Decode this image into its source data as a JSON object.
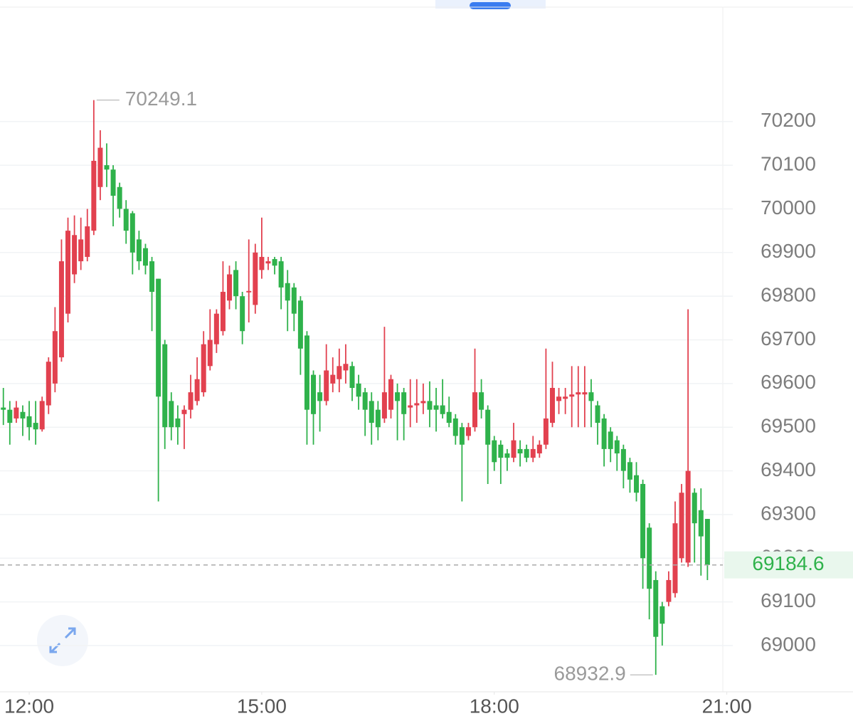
{
  "chart_data": {
    "type": "candlestick",
    "x": [
      700,
      705,
      710,
      715,
      720,
      725,
      730,
      735,
      740,
      745,
      750,
      755,
      760,
      765,
      770,
      775,
      780,
      785,
      790,
      795,
      800,
      805,
      810,
      815,
      820,
      825,
      830,
      835,
      840,
      845,
      850,
      855,
      860,
      865,
      870,
      875,
      880,
      885,
      890,
      895,
      900,
      905,
      910,
      915,
      920,
      925,
      930,
      935,
      940,
      945,
      950,
      955,
      960,
      965,
      970,
      975,
      980,
      985,
      990,
      995,
      1000,
      1005,
      1010,
      1015,
      1020,
      1025,
      1030,
      1035,
      1040,
      1045,
      1050,
      1055,
      1060,
      1065,
      1070,
      1075,
      1080,
      1085,
      1090,
      1095,
      1100,
      1105,
      1110,
      1115,
      1120,
      1125,
      1130,
      1135,
      1140,
      1145,
      1150,
      1155,
      1160,
      1165,
      1170,
      1175,
      1180,
      1185,
      1190,
      1195,
      1200,
      1205,
      1210,
      1215,
      1220,
      1225,
      1230,
      1235,
      1240,
      1245
    ],
    "open": [
      69545,
      69540,
      69520,
      69535,
      69525,
      69510,
      69495,
      69550,
      69600,
      69660,
      69760,
      69850,
      69880,
      69890,
      69950,
      70050,
      70100,
      70090,
      70050,
      70000,
      69990,
      69930,
      69910,
      69880,
      69840,
      69690,
      69560,
      69520,
      69530,
      69540,
      69560,
      69580,
      69640,
      69690,
      69720,
      69790,
      69860,
      69800,
      69810,
      69780,
      69860,
      69875,
      69885,
      69880,
      69830,
      69820,
      69790,
      69710,
      69620,
      69580,
      69560,
      69600,
      69610,
      69630,
      69640,
      69600,
      69580,
      69560,
      69540,
      69520,
      69540,
      69580,
      69580,
      69545,
      69550,
      69555,
      69560,
      69550,
      69550,
      69535,
      69520,
      69500,
      69480,
      69500,
      69580,
      69540,
      69470,
      69460,
      69440,
      69430,
      69450,
      69450,
      69430,
      69440,
      69460,
      69510,
      69560,
      69565,
      69570,
      69575,
      69575,
      69580,
      69550,
      69520,
      69490,
      69470,
      69450,
      69420,
      69390,
      69370,
      69270,
      69150,
      69090,
      69100,
      69120,
      69200,
      69190,
      69350,
      69310,
      69290
    ],
    "high": [
      69590,
      69560,
      69560,
      69550,
      69560,
      69560,
      69570,
      69660,
      69775,
      69930,
      69980,
      69985,
      69980,
      70000,
      70249.1,
      70180,
      70150,
      70100,
      70060,
      70020,
      69995,
      69950,
      69920,
      69890,
      69840,
      69700,
      69580,
      69550,
      69550,
      69620,
      69660,
      69720,
      69770,
      69770,
      69880,
      69870,
      69880,
      69810,
      69930,
      69920,
      69980,
      69890,
      69890,
      69890,
      69860,
      69830,
      69800,
      69720,
      69630,
      69620,
      69690,
      69660,
      69680,
      69690,
      69650,
      69620,
      69590,
      69580,
      69560,
      69730,
      69620,
      69600,
      69590,
      69610,
      69610,
      69600,
      69605,
      69590,
      69610,
      69570,
      69530,
      69510,
      69510,
      69680,
      69610,
      69550,
      69480,
      69470,
      69450,
      69510,
      69470,
      69460,
      69480,
      69470,
      69680,
      69650,
      69590,
      69590,
      69640,
      69640,
      69640,
      69610,
      69560,
      69530,
      69500,
      69480,
      69460,
      69430,
      69420,
      69380,
      69280,
      69170,
      69100,
      69170,
      69330,
      69370,
      69770,
      69360,
      69360,
      69290
    ],
    "low": [
      69505,
      69460,
      69510,
      69480,
      69470,
      69460,
      69490,
      69530,
      69580,
      69650,
      69740,
      69830,
      69860,
      69880,
      69940,
      70020,
      70050,
      69960,
      69980,
      69920,
      69850,
      69860,
      69850,
      69720,
      69330,
      69450,
      69470,
      69460,
      69450,
      69520,
      69550,
      69570,
      69630,
      69670,
      69710,
      69770,
      69770,
      69690,
      69740,
      69760,
      69840,
      69860,
      69850,
      69770,
      69720,
      69720,
      69620,
      69460,
      69460,
      69490,
      69550,
      69580,
      69580,
      69600,
      69560,
      69540,
      69480,
      69460,
      69470,
      69510,
      69520,
      69470,
      69470,
      69500,
      69510,
      69530,
      69500,
      69490,
      69520,
      69500,
      69460,
      69330,
      69470,
      69490,
      69520,
      69370,
      69400,
      69370,
      69400,
      69420,
      69410,
      69420,
      69420,
      69430,
      69450,
      69500,
      69530,
      69530,
      69500,
      69500,
      69500,
      69500,
      69460,
      69410,
      69420,
      69400,
      69360,
      69350,
      69330,
      69130,
      69060,
      68932.9,
      69000,
      69090,
      69110,
      69190,
      69180,
      69190,
      69160,
      69150
    ],
    "close": [
      69540,
      69510,
      69545,
      69520,
      69500,
      69495,
      69560,
      69650,
      69720,
      69880,
      69950,
      69940,
      69930,
      69960,
      70110,
      70140,
      70090,
      70030,
      70000,
      69950,
      69900,
      69880,
      69870,
      69810,
      69570,
      69500,
      69500,
      69500,
      69540,
      69580,
      69610,
      69690,
      69700,
      69760,
      69810,
      69850,
      69800,
      69720,
      69812,
      69900,
      69890,
      69880,
      69870,
      69820,
      69790,
      69760,
      69680,
      69540,
      69530,
      69560,
      69630,
      69620,
      69640,
      69645,
      69590,
      69570,
      69540,
      69510,
      69500,
      69580,
      69610,
      69560,
      69530,
      69550,
      69555,
      69560,
      69540,
      69540,
      69530,
      69510,
      69480,
      69460,
      69500,
      69580,
      69540,
      69460,
      69420,
      69430,
      69430,
      69470,
      69440,
      69430,
      69450,
      69460,
      69520,
      69590,
      69570,
      69570,
      69575,
      69580,
      69580,
      69560,
      69510,
      69450,
      69450,
      69440,
      69400,
      69380,
      69350,
      69200,
      69130,
      69020,
      69050,
      69150,
      69280,
      69350,
      69400,
      69280,
      69250,
      69184.6
    ],
    "up_color": "#e2414f",
    "down_color": "#2fb24b",
    "xlim": [
      697.4,
      1256.9
    ],
    "xticks": [
      {
        "value": 720,
        "label": "12:00"
      },
      {
        "value": 900,
        "label": "15:00"
      },
      {
        "value": 1080,
        "label": "18:00"
      },
      {
        "value": 1260,
        "label": "21:00"
      }
    ],
    "ylim": [
      68894,
      70462
    ],
    "yticks": [
      69000,
      69100,
      69200,
      69300,
      69400,
      69500,
      69600,
      69700,
      69800,
      69900,
      70000,
      70100,
      70200
    ],
    "grid": true
  }
}
